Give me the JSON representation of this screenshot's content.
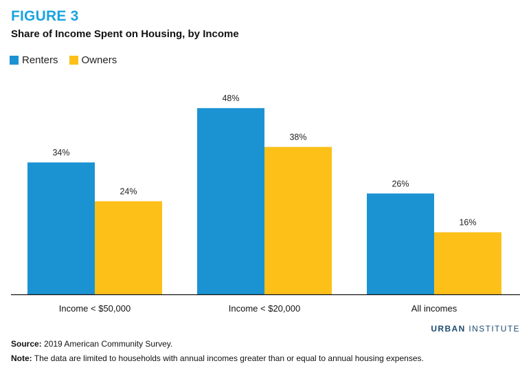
{
  "figure_label": "FIGURE 3",
  "title": "Share of Income Spent on Housing, by Income",
  "legend": [
    {
      "label": "Renters",
      "color": "#1b93d3"
    },
    {
      "label": "Owners",
      "color": "#fcc019"
    }
  ],
  "chart_data": {
    "type": "bar",
    "categories": [
      "Income < $50,000",
      "Income < $20,000",
      "All incomes"
    ],
    "series": [
      {
        "name": "Renters",
        "values": [
          34,
          48,
          26
        ],
        "labels": [
          "34%",
          "48%",
          "26%"
        ],
        "color": "#1b93d3"
      },
      {
        "name": "Owners",
        "values": [
          24,
          38,
          16
        ],
        "labels": [
          "24%",
          "38%",
          "16%"
        ],
        "color": "#fcc019"
      }
    ],
    "title": "Share of Income Spent on Housing, by Income",
    "xlabel": "",
    "ylabel": "",
    "ylim": [
      0,
      50
    ],
    "legend_position": "top-left"
  },
  "branding": {
    "bold": "URBAN",
    "rest": "INSTITUTE"
  },
  "source": {
    "label": "Source:",
    "text": "2019 American Community Survey."
  },
  "note": {
    "label": "Note:",
    "text": "The data are limited to households with annual incomes greater than or equal to annual housing expenses."
  }
}
